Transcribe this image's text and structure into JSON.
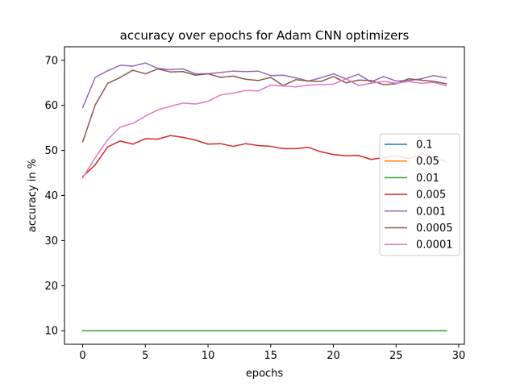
{
  "chart_data": {
    "type": "line",
    "title": "accuracy over epochs for Adam CNN optimizers",
    "xlabel": "epochs",
    "ylabel": "accuracy in %",
    "xlim": [
      -1.45,
      30.45
    ],
    "ylim": [
      7.0,
      73.0
    ],
    "xticks": [
      0,
      5,
      10,
      15,
      20,
      25,
      30
    ],
    "yticks": [
      10,
      20,
      30,
      40,
      50,
      60,
      70
    ],
    "grid": false,
    "legend_position": "center-right",
    "x": [
      0,
      1,
      2,
      3,
      4,
      5,
      6,
      7,
      8,
      9,
      10,
      11,
      12,
      13,
      14,
      15,
      16,
      17,
      18,
      19,
      20,
      21,
      22,
      23,
      24,
      25,
      26,
      27,
      28,
      29
    ],
    "series": [
      {
        "name": "0.1",
        "color": "#1f77b4",
        "values": [
          10,
          10,
          10,
          10,
          10,
          10,
          10,
          10,
          10,
          10,
          10,
          10,
          10,
          10,
          10,
          10,
          10,
          10,
          10,
          10,
          10,
          10,
          10,
          10,
          10,
          10,
          10,
          10,
          10,
          10
        ]
      },
      {
        "name": "0.05",
        "color": "#ff7f0e",
        "values": [
          10,
          10,
          10,
          10,
          10,
          10,
          10,
          10,
          10,
          10,
          10,
          10,
          10,
          10,
          10,
          10,
          10,
          10,
          10,
          10,
          10,
          10,
          10,
          10,
          10,
          10,
          10,
          10,
          10,
          10
        ]
      },
      {
        "name": "0.01",
        "color": "#2ca02c",
        "values": [
          10,
          10,
          10,
          10,
          10,
          10,
          10,
          10,
          10,
          10,
          10,
          10,
          10,
          10,
          10,
          10,
          10,
          10,
          10,
          10,
          10,
          10,
          10,
          10,
          10,
          10,
          10,
          10,
          10,
          10
        ]
      },
      {
        "name": "0.005",
        "color": "#d62728",
        "values": [
          44.2,
          46.8,
          50.8,
          52.1,
          51.4,
          52.6,
          52.5,
          53.3,
          52.9,
          52.3,
          51.4,
          51.5,
          50.9,
          51.5,
          51.1,
          50.9,
          50.4,
          50.4,
          50.7,
          49.7,
          49.1,
          48.8,
          48.9,
          48.0,
          48.4,
          48.8,
          48.2,
          49.2,
          48.4,
          47.5
        ]
      },
      {
        "name": "0.001",
        "color": "#9467bd",
        "values": [
          59.5,
          66.2,
          67.7,
          68.9,
          68.7,
          69.4,
          68.2,
          67.9,
          68.1,
          67.0,
          67.0,
          67.3,
          67.6,
          67.5,
          67.6,
          66.6,
          66.7,
          66.1,
          65.4,
          66.1,
          67.0,
          65.9,
          66.9,
          65.2,
          66.4,
          65.4,
          65.5,
          65.9,
          66.6,
          66.1
        ]
      },
      {
        "name": "0.0005",
        "color": "#8c564b",
        "values": [
          51.9,
          60.1,
          64.9,
          66.2,
          67.8,
          67.0,
          68.1,
          67.4,
          67.5,
          66.7,
          67.0,
          66.2,
          66.5,
          65.8,
          65.5,
          66.2,
          64.4,
          65.7,
          65.4,
          65.3,
          66.4,
          65.0,
          65.6,
          65.5,
          64.6,
          64.8,
          65.9,
          65.6,
          65.3,
          64.8
        ]
      },
      {
        "name": "0.0001",
        "color": "#e377c2",
        "values": [
          43.9,
          48.4,
          52.4,
          55.2,
          56.0,
          57.6,
          59.0,
          59.8,
          60.5,
          60.3,
          60.9,
          62.3,
          62.7,
          63.3,
          63.2,
          64.5,
          64.3,
          64.1,
          64.5,
          64.6,
          64.7,
          65.9,
          64.4,
          64.9,
          65.3,
          64.9,
          65.3,
          64.9,
          65.1,
          64.4
        ]
      }
    ]
  }
}
